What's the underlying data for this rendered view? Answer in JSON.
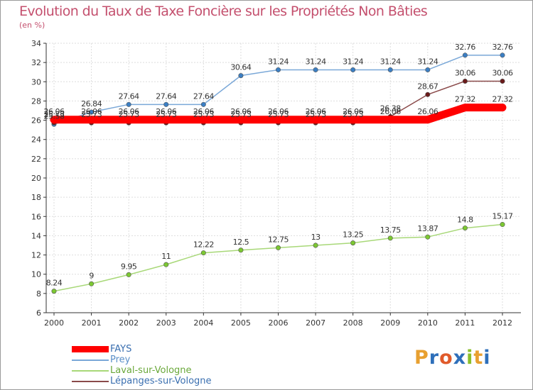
{
  "header": {
    "title": "Evolution du Taux de Taxe Foncière sur les Propriétés Non Bâties",
    "unit": "(en %)"
  },
  "logo": {
    "text": "Proxiti",
    "colors": [
      "#e8a030",
      "#2e6fba",
      "#e05a2a",
      "#2e6fba",
      "#8bbf2a",
      "#e8a030",
      "#2e6fba"
    ]
  },
  "chart_data": {
    "type": "line",
    "title": "Evolution du Taux de Taxe Foncière sur les Propriétés Non Bâties",
    "ylabel": "(en %)",
    "xlabel": "",
    "x": [
      "2000",
      "2001",
      "2002",
      "2003",
      "2004",
      "2005",
      "2006",
      "2007",
      "2008",
      "2009",
      "2010",
      "2011",
      "2012"
    ],
    "yticks": [
      "6",
      "8",
      "10",
      "12",
      "14",
      "16",
      "18",
      "20",
      "22",
      "24",
      "26",
      "28",
      "30",
      "32",
      "34"
    ],
    "ylim": [
      6,
      34
    ],
    "grid": true,
    "legend_position": "bottom-left",
    "series": [
      {
        "name": "FAYS",
        "color": "#ff0000",
        "style": "thick",
        "values": [
          26.06,
          26.06,
          26.06,
          26.06,
          26.06,
          26.06,
          26.06,
          26.06,
          26.06,
          26.06,
          26.06,
          27.32,
          27.32
        ],
        "labels": [
          "26.06",
          "26.06",
          "26.06",
          "26.06",
          "26.06",
          "26.06",
          "26.06",
          "26.06",
          "26.06",
          "26.06",
          "26.06",
          "27.32",
          "27.32"
        ]
      },
      {
        "name": "Prey",
        "color": "#7aa8d8",
        "marker": "#3b7fc4",
        "values": [
          25.58,
          26.84,
          27.64,
          27.64,
          27.64,
          30.64,
          31.24,
          31.24,
          31.24,
          31.24,
          31.24,
          32.76,
          32.76
        ],
        "labels": [
          "25.58",
          "26.84",
          "27.64",
          "27.64",
          "27.64",
          "30.64",
          "31.24",
          "31.24",
          "31.24",
          "31.24",
          "31.24",
          "32.76",
          "32.76"
        ]
      },
      {
        "name": "Laval-sur-Vologne",
        "color": "#a8d878",
        "marker": "#7cc832",
        "values": [
          8.24,
          9,
          9.95,
          11,
          12.22,
          12.5,
          12.75,
          13,
          13.25,
          13.75,
          13.87,
          14.8,
          15.17
        ],
        "labels": [
          "8.24",
          "9",
          "9.95",
          "11",
          "12.22",
          "12.5",
          "12.75",
          "13",
          "13.25",
          "13.75",
          "13.87",
          "14.8",
          "15.17"
        ]
      },
      {
        "name": "Lépanges-sur-Vologne",
        "color": "#8a4a4a",
        "marker": "#6a1a1a",
        "values": [
          25.73,
          25.73,
          25.73,
          25.73,
          25.73,
          25.73,
          25.73,
          25.73,
          25.73,
          26.38,
          28.67,
          30.06,
          30.06
        ],
        "labels": [
          "25.73",
          "25.73",
          "25.73",
          "25.73",
          "25.73",
          "25.73",
          "25.73",
          "25.73",
          "25.73",
          "26.38",
          "28.67",
          "30.06",
          "30.06"
        ]
      }
    ]
  }
}
